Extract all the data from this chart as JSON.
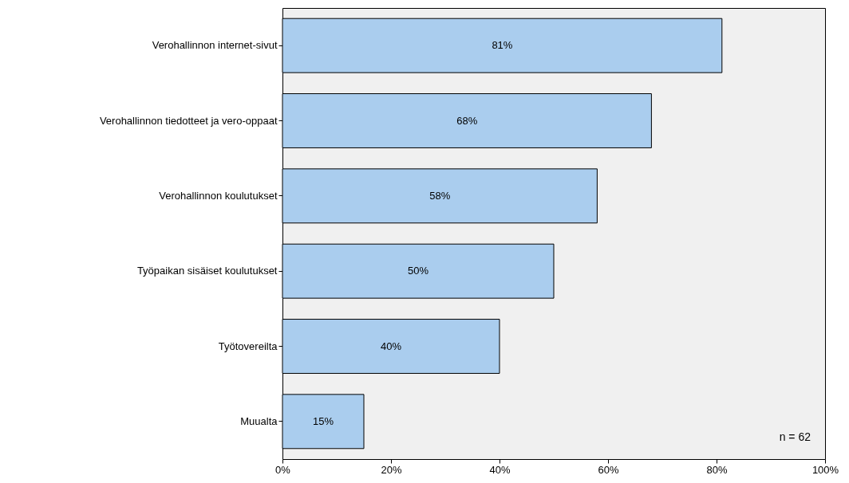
{
  "chart_data": {
    "type": "bar",
    "orientation": "horizontal",
    "categories": [
      "Verohallinnon internet-sivut",
      "Verohallinnon tiedotteet ja vero-oppaat",
      "Verohallinnon koulutukset",
      "Työpaikan sisäiset koulutukset",
      "Työtovereilta",
      "Muualta"
    ],
    "values": [
      81,
      68,
      58,
      50,
      40,
      15
    ],
    "value_labels": [
      "81%",
      "68%",
      "58%",
      "50%",
      "40%",
      "15%"
    ],
    "color": "#aacdee",
    "xlim": [
      0,
      100
    ],
    "xticks": [
      {
        "value": 0,
        "label": "0%"
      },
      {
        "value": 20,
        "label": "20%"
      },
      {
        "value": 40,
        "label": "40%"
      },
      {
        "value": 60,
        "label": "60%"
      },
      {
        "value": 80,
        "label": "80%"
      },
      {
        "value": 100,
        "label": "100%"
      }
    ],
    "grid": false,
    "annotations": [
      "n = 62"
    ]
  }
}
